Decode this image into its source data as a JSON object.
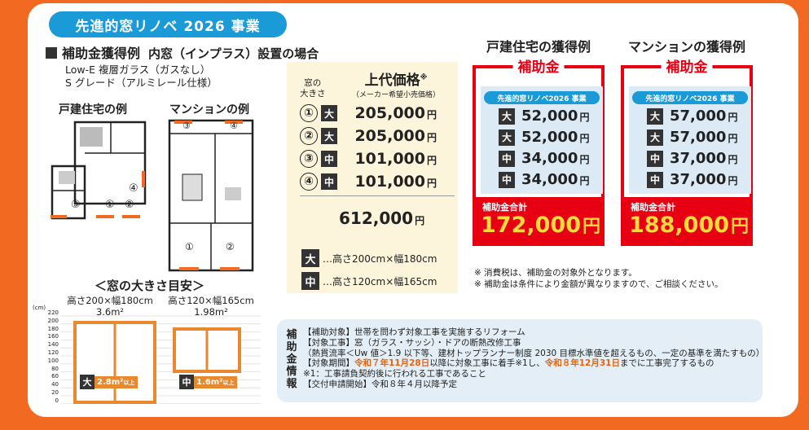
{
  "header": {
    "program": "先進的窓リノベ 2026 事業"
  },
  "example": {
    "title": "補助金獲得例",
    "subtitle": "内窓（インプラス）設置の場合",
    "glass_line1": "Low-E 複層ガラス（ガスなし）",
    "glass_line2": "S グレード（アルミレール仕様）"
  },
  "floorplans": {
    "house_title": "戸建住宅の例",
    "house_floor": "1 階",
    "mansion_title": "マンションの例",
    "markers": [
      "①",
      "②",
      "③",
      "④"
    ]
  },
  "price": {
    "col_size_line1": "窓の",
    "col_size_line2": "大きさ",
    "col_price": "上代価格",
    "col_price_mark": "※",
    "col_price_note": "（メーカー希望小売価格）",
    "rows": [
      {
        "num": "①",
        "size": "大",
        "value": "205,000"
      },
      {
        "num": "②",
        "size": "大",
        "value": "205,000"
      },
      {
        "num": "③",
        "size": "中",
        "value": "101,000"
      },
      {
        "num": "④",
        "size": "中",
        "value": "101,000"
      }
    ],
    "yen": "円",
    "total": "612,000",
    "legend_large_tag": "大",
    "legend_large": "…高さ200cm×幅180cm",
    "legend_mid_tag": "中",
    "legend_mid": "…高さ120cm×幅165cm"
  },
  "cards": [
    {
      "title": "戸建住宅の獲得例",
      "badge": "補助金",
      "pill": "先進的窓リノベ2026 事業",
      "rows": [
        {
          "size": "大",
          "value": "52,000"
        },
        {
          "size": "大",
          "value": "52,000"
        },
        {
          "size": "中",
          "value": "34,000"
        },
        {
          "size": "中",
          "value": "34,000"
        }
      ],
      "total_label": "補助金合計",
      "total": "172,000"
    },
    {
      "title": "マンションの獲得例",
      "badge": "補助金",
      "pill": "先進的窓リノベ2026 事業",
      "rows": [
        {
          "size": "大",
          "value": "57,000"
        },
        {
          "size": "大",
          "value": "57,000"
        },
        {
          "size": "中",
          "value": "37,000"
        },
        {
          "size": "中",
          "value": "37,000"
        }
      ],
      "total_label": "補助金合計",
      "total": "188,000"
    }
  ],
  "notes": {
    "line1": "※ 消費税は、補助金の対象外となります。",
    "line2": "※ 補助金は条件により金額が異なりますので、ご相談ください。"
  },
  "window_sizes": {
    "title": "＜窓の大きさ目安＞",
    "unit": "(cm)",
    "y_ticks": [
      "220",
      "200",
      "180",
      "160",
      "140",
      "120",
      "100",
      "80",
      "60",
      "40",
      "20",
      "0"
    ],
    "large_caption1": "高さ200×幅180cm",
    "large_caption2": "3.6m²",
    "mid_caption1": "高さ120×幅165cm",
    "mid_caption2": "1.98m²",
    "large_tag": "大",
    "large_area": "2.8m²",
    "large_suffix": "以上",
    "mid_tag": "中",
    "mid_area": "1.6m²",
    "mid_suffix": "以上"
  },
  "info": {
    "vertical_label": "補助金情報",
    "line1": "【補助対象】世帯を問わず対象工事を実施するリフォーム",
    "line2": "【対象工事】窓（ガラス・サッシ）・ドアの断熱改修工事",
    "line3": "（熱貫流率＜Uw 値＞1.9 以下等、建材トップランナー制度 2030 目標水準値を超えるもの、一定の基準を満たすもの）",
    "line4_a": "【対象期間】",
    "line4_b": "令和７年11月28日",
    "line4_c": "以降に対象工事に着手※1し、",
    "line4_d": "令和８年12月31日",
    "line4_e": "までに工事完了するもの",
    "line5": "※1：工事請負契約後に行われる工事であること",
    "line6": "【交付申請開始】令和８年４月以降予定"
  }
}
